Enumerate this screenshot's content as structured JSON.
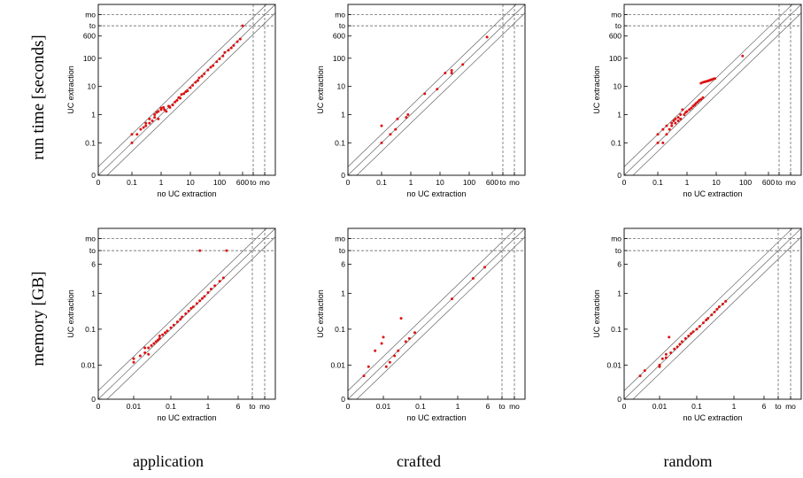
{
  "row_labels": [
    "run time [seconds]",
    "memory [GB]"
  ],
  "column_labels": [
    "application",
    "crafted",
    "random"
  ],
  "colors": {
    "points": "#dd1111",
    "diagonal": "#666666",
    "frame": "#000000",
    "dashed": "#555555"
  },
  "chart_data": [
    {
      "type": "scatter",
      "row": 0,
      "col": 0,
      "xlabel": "no UC extraction",
      "ylabel": "UC extraction",
      "scale": "log",
      "axis_ticks": [
        "0",
        "0.1",
        "1",
        "10",
        "100",
        "600",
        "to",
        "mo"
      ],
      "y_ticks": [
        "0",
        "0.1",
        "1",
        "10",
        "100",
        "600",
        "to",
        "mo"
      ],
      "x_ticks": [
        "0",
        "0.1",
        "1",
        "10",
        "100",
        "600",
        "to",
        "mo"
      ],
      "ref_lines": [
        "y=x",
        "y=2x",
        "y=x/2"
      ],
      "points": [
        [
          0.1,
          0.1
        ],
        [
          0.1,
          0.2
        ],
        [
          0.15,
          0.2
        ],
        [
          0.2,
          0.3
        ],
        [
          0.25,
          0.35
        ],
        [
          0.3,
          0.4
        ],
        [
          0.3,
          0.5
        ],
        [
          0.4,
          0.5
        ],
        [
          0.4,
          0.7
        ],
        [
          0.5,
          0.6
        ],
        [
          0.6,
          0.8
        ],
        [
          0.6,
          1.0
        ],
        [
          0.7,
          1.2
        ],
        [
          0.8,
          1.3
        ],
        [
          0.8,
          0.7
        ],
        [
          1.0,
          1.5
        ],
        [
          1.0,
          1.7
        ],
        [
          1.2,
          1.8
        ],
        [
          1.3,
          1.5
        ],
        [
          1.5,
          1.3
        ],
        [
          1.8,
          2.0
        ],
        [
          2.0,
          1.8
        ],
        [
          2.5,
          2.2
        ],
        [
          3.0,
          2.8
        ],
        [
          3.5,
          3.2
        ],
        [
          4.0,
          4.0
        ],
        [
          4.5,
          3.8
        ],
        [
          5.0,
          5.2
        ],
        [
          6.0,
          5.5
        ],
        [
          7.0,
          6.5
        ],
        [
          8.0,
          7.0
        ],
        [
          10.0,
          9.0
        ],
        [
          12.0,
          11.0
        ],
        [
          15.0,
          14.0
        ],
        [
          18.0,
          16.0
        ],
        [
          20.0,
          20.0
        ],
        [
          25.0,
          23.0
        ],
        [
          30.0,
          28.0
        ],
        [
          40.0,
          38.0
        ],
        [
          50.0,
          48.0
        ],
        [
          60.0,
          55.0
        ],
        [
          80.0,
          75.0
        ],
        [
          100.0,
          95.0
        ],
        [
          130.0,
          120.0
        ],
        [
          150.0,
          160.0
        ],
        [
          200.0,
          190.0
        ],
        [
          250.0,
          230.0
        ],
        [
          300.0,
          280.0
        ],
        [
          400.0,
          380.0
        ],
        [
          500.0,
          470.0
        ],
        [
          600.0,
          "to"
        ]
      ]
    },
    {
      "type": "scatter",
      "row": 0,
      "col": 1,
      "xlabel": "no UC extraction",
      "ylabel": "UC extraction",
      "scale": "log",
      "y_ticks": [
        "0",
        "0.1",
        "1",
        "10",
        "100",
        "600",
        "to",
        "mo"
      ],
      "x_ticks": [
        "0",
        "0.1",
        "1",
        "10",
        "100",
        "600",
        "to",
        "mo"
      ],
      "ref_lines": [
        "y=x",
        "y=2x",
        "y=x/2"
      ],
      "points": [
        [
          0.1,
          0.1
        ],
        [
          0.1,
          0.4
        ],
        [
          0.2,
          0.2
        ],
        [
          0.3,
          0.3
        ],
        [
          0.35,
          0.7
        ],
        [
          0.7,
          0.8
        ],
        [
          0.8,
          1.0
        ],
        [
          3.0,
          5.5
        ],
        [
          8.0,
          8.0
        ],
        [
          15.0,
          30.0
        ],
        [
          25.0,
          30.0
        ],
        [
          25.0,
          37.0
        ],
        [
          60.0,
          60.0
        ],
        [
          400.0,
          550.0
        ]
      ]
    },
    {
      "type": "scatter",
      "row": 0,
      "col": 2,
      "xlabel": "no UC extraction",
      "ylabel": "UC extraction",
      "scale": "log",
      "y_ticks": [
        "0",
        "0.1",
        "1",
        "10",
        "100",
        "600",
        "to",
        "mo"
      ],
      "x_ticks": [
        "0",
        "0.1",
        "1",
        "10",
        "100",
        "600",
        "to",
        "mo"
      ],
      "ref_lines": [
        "y=x",
        "y=2x",
        "y=x/2"
      ],
      "points": [
        [
          0.1,
          0.1
        ],
        [
          0.1,
          0.2
        ],
        [
          0.15,
          0.3
        ],
        [
          0.15,
          0.1
        ],
        [
          0.2,
          0.4
        ],
        [
          0.2,
          0.2
        ],
        [
          0.25,
          0.3
        ],
        [
          0.3,
          0.5
        ],
        [
          0.3,
          0.4
        ],
        [
          0.35,
          0.6
        ],
        [
          0.4,
          0.5
        ],
        [
          0.4,
          0.7
        ],
        [
          0.5,
          0.8
        ],
        [
          0.5,
          0.6
        ],
        [
          0.6,
          1.0
        ],
        [
          0.6,
          0.7
        ],
        [
          0.7,
          1.5
        ],
        [
          0.8,
          1.0
        ],
        [
          0.9,
          1.2
        ],
        [
          1.0,
          1.3
        ],
        [
          1.2,
          1.5
        ],
        [
          1.4,
          1.7
        ],
        [
          1.6,
          2.0
        ],
        [
          1.8,
          2.2
        ],
        [
          2.0,
          2.5
        ],
        [
          2.3,
          2.8
        ],
        [
          2.6,
          3.2
        ],
        [
          3.0,
          3.5
        ],
        [
          3.5,
          4.0
        ],
        [
          3.0,
          13.0
        ],
        [
          3.5,
          14.0
        ],
        [
          4.0,
          14.5
        ],
        [
          4.5,
          15.0
        ],
        [
          5.0,
          15.5
        ],
        [
          5.5,
          16.0
        ],
        [
          6.0,
          16.5
        ],
        [
          6.5,
          17.0
        ],
        [
          7.0,
          17.5
        ],
        [
          8.0,
          18.5
        ],
        [
          9.0,
          19.0
        ],
        [
          80.0,
          120.0
        ]
      ]
    },
    {
      "type": "scatter",
      "row": 1,
      "col": 0,
      "xlabel": "no UC extraction",
      "ylabel": "UC extraction",
      "scale": "log",
      "y_ticks": [
        "0",
        "0.01",
        "0.1",
        "1",
        "6",
        "to",
        "mo"
      ],
      "x_ticks": [
        "0",
        "0.01",
        "0.1",
        "1",
        "6",
        "to",
        "mo"
      ],
      "ref_lines": [
        "y=x",
        "y=2x",
        "y=x/2"
      ],
      "points": [
        [
          0.01,
          0.012
        ],
        [
          0.01,
          0.015
        ],
        [
          0.015,
          0.018
        ],
        [
          0.02,
          0.022
        ],
        [
          0.025,
          0.03
        ],
        [
          0.02,
          0.03
        ],
        [
          0.025,
          0.02
        ],
        [
          0.03,
          0.035
        ],
        [
          0.035,
          0.04
        ],
        [
          0.04,
          0.045
        ],
        [
          0.045,
          0.05
        ],
        [
          0.05,
          0.055
        ],
        [
          0.05,
          0.065
        ],
        [
          0.06,
          0.07
        ],
        [
          0.07,
          0.08
        ],
        [
          0.08,
          0.09
        ],
        [
          0.1,
          0.11
        ],
        [
          0.12,
          0.13
        ],
        [
          0.15,
          0.16
        ],
        [
          0.18,
          0.19
        ],
        [
          0.2,
          0.22
        ],
        [
          0.25,
          0.27
        ],
        [
          0.3,
          0.32
        ],
        [
          0.35,
          0.38
        ],
        [
          0.4,
          0.42
        ],
        [
          0.5,
          0.52
        ],
        [
          0.6,
          0.62
        ],
        [
          0.7,
          0.72
        ],
        [
          0.8,
          0.82
        ],
        [
          1.0,
          1.05
        ],
        [
          1.2,
          1.3
        ],
        [
          1.5,
          1.6
        ],
        [
          2.0,
          2.1
        ],
        [
          2.5,
          2.6
        ],
        [
          0.6,
          "to"
        ],
        [
          3.0,
          "to"
        ]
      ]
    },
    {
      "type": "scatter",
      "row": 1,
      "col": 1,
      "xlabel": "no UC extraction",
      "ylabel": "UC extraction",
      "scale": "log",
      "y_ticks": [
        "0",
        "0.01",
        "0.1",
        "1",
        "6",
        "to",
        "mo"
      ],
      "x_ticks": [
        "0",
        "0.01",
        "0.1",
        "1",
        "6",
        "to",
        "mo"
      ],
      "ref_lines": [
        "y=x",
        "y=2x",
        "y=x/2"
      ],
      "points": [
        [
          0.003,
          0.005
        ],
        [
          0.004,
          0.009
        ],
        [
          0.006,
          0.025
        ],
        [
          0.009,
          0.04
        ],
        [
          0.01,
          0.06
        ],
        [
          0.012,
          0.009
        ],
        [
          0.015,
          0.012
        ],
        [
          0.02,
          0.018
        ],
        [
          0.025,
          0.025
        ],
        [
          0.03,
          0.2
        ],
        [
          0.04,
          0.045
        ],
        [
          0.05,
          0.055
        ],
        [
          0.07,
          0.08
        ],
        [
          0.7,
          0.7
        ],
        [
          2.5,
          2.5
        ],
        [
          5.0,
          5.0
        ]
      ]
    },
    {
      "type": "scatter",
      "row": 1,
      "col": 2,
      "xlabel": "no UC extraction",
      "ylabel": "UC extraction",
      "scale": "log",
      "y_ticks": [
        "0",
        "0.01",
        "0.1",
        "1",
        "6",
        "to",
        "mo"
      ],
      "x_ticks": [
        "0",
        "0.01",
        "0.1",
        "1",
        "6",
        "to",
        "mo"
      ],
      "ref_lines": [
        "y=x",
        "y=2x",
        "y=x/2"
      ],
      "points": [
        [
          0.003,
          0.005
        ],
        [
          0.004,
          0.007
        ],
        [
          0.01,
          0.01
        ],
        [
          0.01,
          0.009
        ],
        [
          0.012,
          0.015
        ],
        [
          0.015,
          0.02
        ],
        [
          0.015,
          0.016
        ],
        [
          0.018,
          0.06
        ],
        [
          0.02,
          0.022
        ],
        [
          0.025,
          0.028
        ],
        [
          0.03,
          0.032
        ],
        [
          0.035,
          0.038
        ],
        [
          0.04,
          0.045
        ],
        [
          0.05,
          0.055
        ],
        [
          0.06,
          0.065
        ],
        [
          0.07,
          0.075
        ],
        [
          0.08,
          0.085
        ],
        [
          0.1,
          0.1
        ],
        [
          0.12,
          0.12
        ],
        [
          0.15,
          0.15
        ],
        [
          0.18,
          0.18
        ],
        [
          0.2,
          0.2
        ],
        [
          0.25,
          0.25
        ],
        [
          0.3,
          0.3
        ],
        [
          0.35,
          0.36
        ],
        [
          0.4,
          0.42
        ],
        [
          0.5,
          0.5
        ],
        [
          0.6,
          0.6
        ]
      ]
    }
  ]
}
